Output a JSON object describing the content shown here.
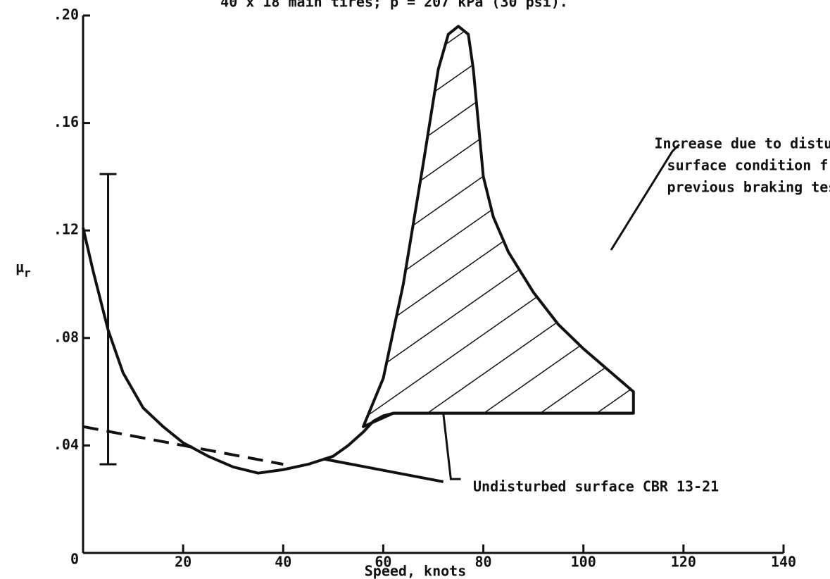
{
  "chart_data": {
    "type": "line",
    "title": "40 x 18 main tires; p = 207 kPa (30 psi).",
    "xlabel": "Speed, knots",
    "ylabel": {
      "symbol": "μ",
      "subscript": "r"
    },
    "xlim": [
      0,
      140
    ],
    "xticks": [
      0,
      20,
      40,
      60,
      80,
      100,
      120,
      140
    ],
    "ylim": [
      0,
      0.2
    ],
    "yticks": [
      0,
      {
        "value": 0.04,
        "label": ".04"
      },
      {
        "value": 0.08,
        "label": ".08"
      },
      {
        "value": 0.12,
        "label": ".12"
      },
      {
        "value": 0.16,
        "label": ".16"
      },
      {
        "value": 0.2,
        "label": ".20"
      }
    ],
    "color": "#111",
    "series": [
      {
        "style": "solid",
        "x": [
          0,
          2,
          5,
          8,
          12,
          16,
          20,
          25,
          30,
          35,
          40,
          45,
          50,
          53,
          56,
          58,
          60,
          62,
          110
        ],
        "values": [
          0.121,
          0.105,
          0.083,
          0.067,
          0.054,
          0.047,
          0.041,
          0.036,
          0.032,
          0.0297,
          0.031,
          0.033,
          0.036,
          0.04,
          0.045,
          0.049,
          0.051,
          0.052,
          0.052
        ]
      },
      {
        "style": "dashed",
        "x": [
          0,
          40
        ],
        "values": [
          0.047,
          0.033
        ]
      },
      {
        "style": "solid",
        "x": [
          48,
          72
        ],
        "values": [
          0.035,
          0.0265
        ]
      },
      {
        "style": "hatch",
        "x": [
          56,
          60,
          64,
          68,
          71,
          73,
          75,
          77,
          78,
          79,
          80,
          82,
          85,
          90,
          95,
          100,
          105,
          110,
          110,
          62
        ],
        "values": [
          0.047,
          0.065,
          0.1,
          0.145,
          0.18,
          0.193,
          0.196,
          0.193,
          0.18,
          0.16,
          0.14,
          0.125,
          0.112,
          0.097,
          0.085,
          0.076,
          0.068,
          0.06,
          0.052,
          0.052
        ]
      }
    ],
    "error_bar": {
      "x": 5,
      "low": 0.033,
      "high": 0.141
    },
    "annotations": [
      {
        "lines": [
          "Increase due to disturbed",
          "surface condition from",
          "previous braking tests"
        ]
      },
      {
        "lines": [
          "Undisturbed surface CBR 13-21"
        ]
      }
    ]
  }
}
